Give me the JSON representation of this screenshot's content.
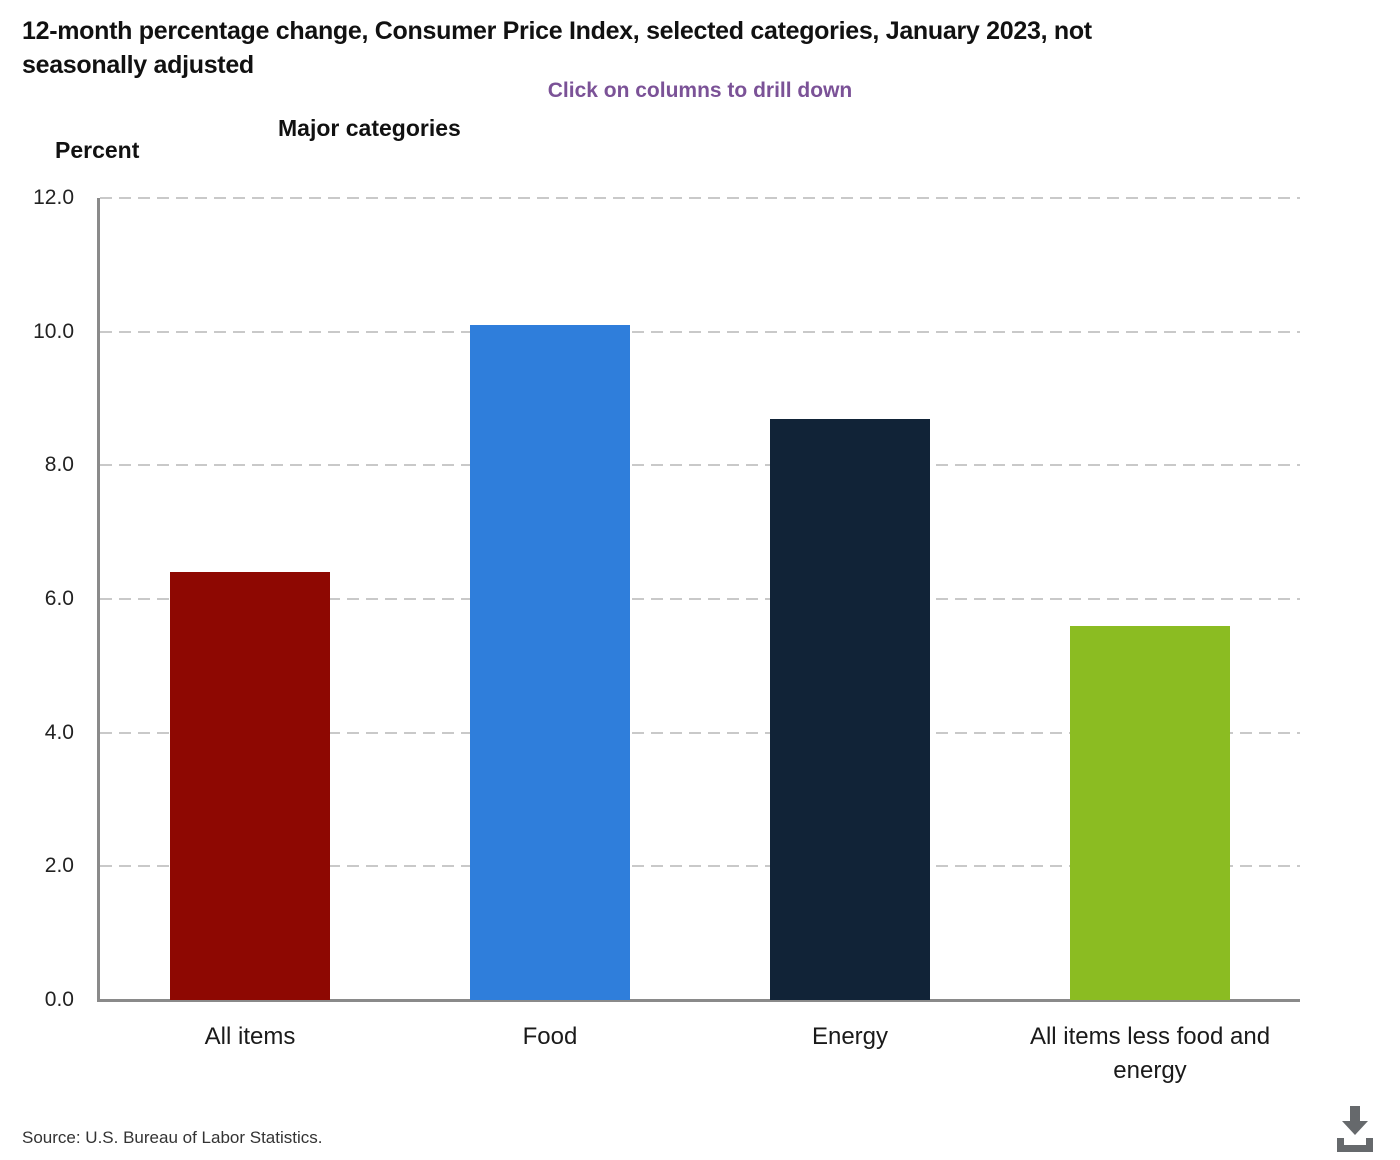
{
  "header": {
    "title_line1": "12-month percentage change, Consumer Price Index, selected categories, January 2023, not",
    "title_line2": "seasonally adjusted",
    "subtitle": "Click on columns to drill down"
  },
  "chart_data": {
    "type": "bar",
    "title": "12-month percentage change, Consumer Price Index, selected categories, January 2023, not seasonally adjusted",
    "annotation": "Click on columns to drill down",
    "xlabel": "Major categories",
    "ylabel": "Percent",
    "categories": [
      "All items",
      "Food",
      "Energy",
      "All items less food and energy"
    ],
    "values": [
      6.4,
      10.1,
      8.7,
      5.6
    ],
    "bar_colors": [
      "#8E0802",
      "#2F7EDB",
      "#112337",
      "#8BBC22"
    ],
    "ylim": [
      0,
      12
    ],
    "ytick_interval": 2,
    "ytick_labels": [
      "0.0",
      "2.0",
      "4.0",
      "6.0",
      "8.0",
      "10.0",
      "12.0"
    ],
    "grid": "horizontal-dashed",
    "legend": "none"
  },
  "footer": {
    "source": "Source: U.S. Bureau of Labor Statistics."
  },
  "icons": {
    "download": "download-icon"
  },
  "colors": {
    "subtitle_purple": "#7B5297",
    "axis_gray": "#8A8A8A",
    "gridline_gray": "#C9C9C9",
    "icon_gray": "#66696C",
    "text": "#111111"
  }
}
